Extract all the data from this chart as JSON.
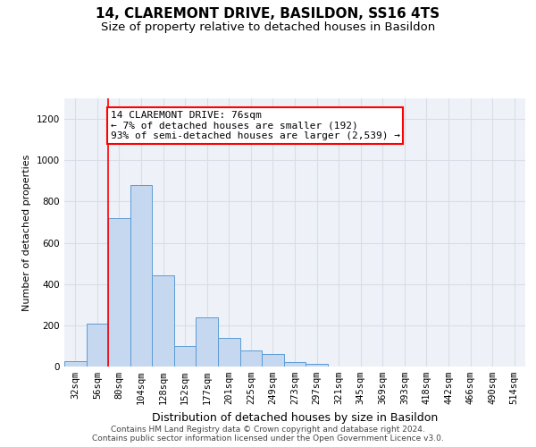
{
  "title": "14, CLAREMONT DRIVE, BASILDON, SS16 4TS",
  "subtitle": "Size of property relative to detached houses in Basildon",
  "xlabel": "Distribution of detached houses by size in Basildon",
  "ylabel": "Number of detached properties",
  "categories": [
    "32sqm",
    "56sqm",
    "80sqm",
    "104sqm",
    "128sqm",
    "152sqm",
    "177sqm",
    "201sqm",
    "225sqm",
    "249sqm",
    "273sqm",
    "297sqm",
    "321sqm",
    "345sqm",
    "369sqm",
    "393sqm",
    "418sqm",
    "442sqm",
    "466sqm",
    "490sqm",
    "514sqm"
  ],
  "bar_values": [
    25,
    210,
    720,
    880,
    440,
    100,
    240,
    140,
    80,
    60,
    20,
    15,
    0,
    0,
    0,
    0,
    0,
    0,
    0,
    0,
    0
  ],
  "bar_color": "#c5d8ef",
  "bar_edge_color": "#5b9bd5",
  "red_line_x": 1.5,
  "annotation_box_text": "14 CLAREMONT DRIVE: 76sqm\n← 7% of detached houses are smaller (192)\n93% of semi-detached houses are larger (2,539) →",
  "ylim": [
    0,
    1300
  ],
  "yticks": [
    0,
    200,
    400,
    600,
    800,
    1000,
    1200
  ],
  "footer_line1": "Contains HM Land Registry data © Crown copyright and database right 2024.",
  "footer_line2": "Contains public sector information licensed under the Open Government Licence v3.0.",
  "background_color": "#eef2f8",
  "grid_color": "#d8dde8",
  "title_fontsize": 11,
  "subtitle_fontsize": 9.5,
  "xlabel_fontsize": 9,
  "ylabel_fontsize": 8,
  "tick_fontsize": 7.5,
  "footer_fontsize": 6.5,
  "annotation_fontsize": 8
}
